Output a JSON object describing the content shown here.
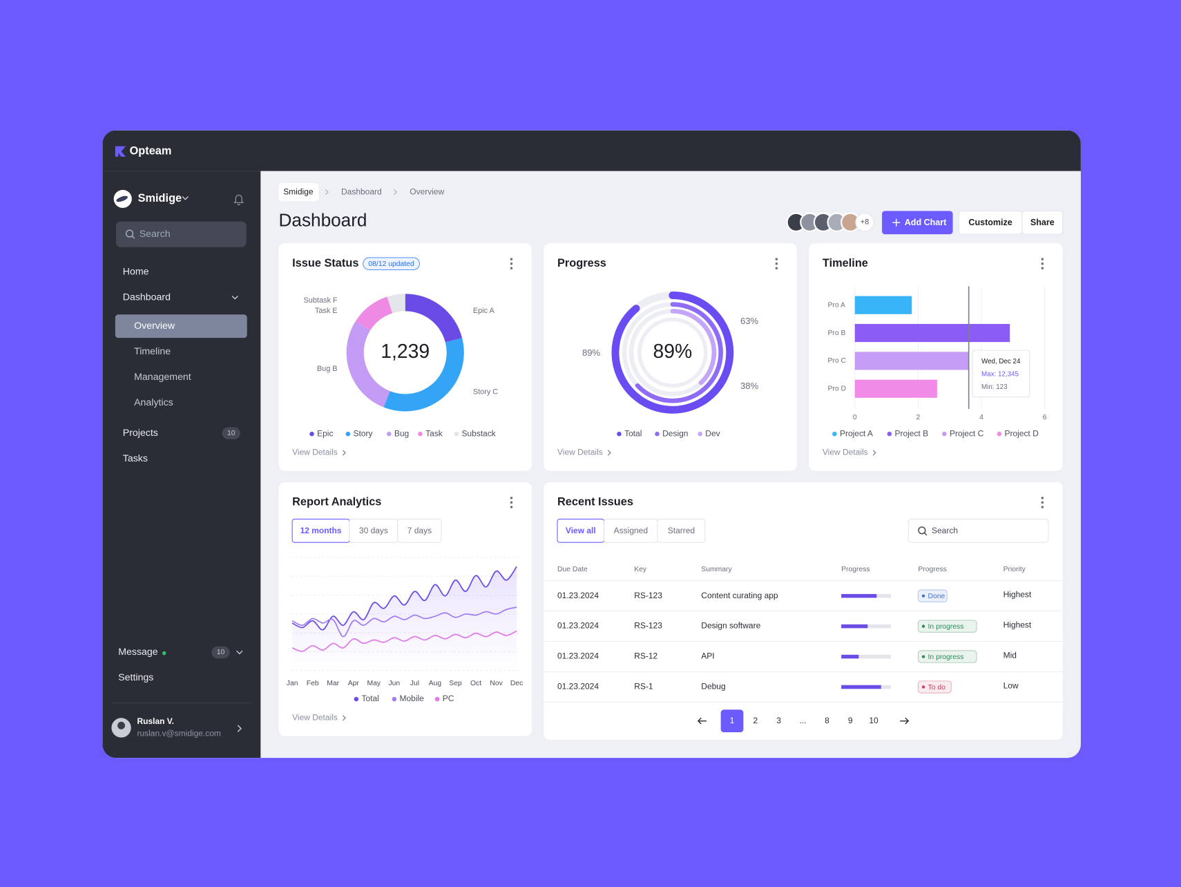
{
  "app": {
    "name": "Opteam"
  },
  "sidebar": {
    "workspace": "Smidige",
    "search": "Search",
    "nav": [
      {
        "label": "Home"
      },
      {
        "label": "Dashboard",
        "children": [
          "Overview",
          "Timeline",
          "Management",
          "Analytics"
        ]
      },
      {
        "label": "Projects",
        "badge": 10
      },
      {
        "label": "Tasks"
      }
    ],
    "message": {
      "label": "Message",
      "badge": 10
    },
    "settings": "Settings",
    "user": {
      "name": "Ruslan V.",
      "email": "ruslan.v@smidige.com"
    }
  },
  "breadcrumb": [
    "Smidige",
    "Dashboard",
    "Overview"
  ],
  "header": {
    "title": "Dashboard",
    "more_members": "+8",
    "buttons": [
      "Add Chart",
      "Customize",
      "Share"
    ]
  },
  "chart_data": [
    {
      "type": "donut",
      "title": "Issue Status",
      "badge": "08/12 updated",
      "total": "1,239",
      "categories": [
        "Epic A",
        "Story C",
        "Bug B",
        "Task E",
        "Subtask F"
      ],
      "legend": [
        "Epic",
        "Story",
        "Bug",
        "Task",
        "Substack"
      ],
      "values": [
        21,
        35,
        28,
        11,
        5
      ],
      "colors": [
        "#6a4be6",
        "#34a4f7",
        "#c39bf4",
        "#ef8ae4",
        "#e3e5ea"
      ],
      "link": "View Details"
    },
    {
      "type": "rings",
      "title": "Progress",
      "categories": [
        "Total",
        "Design",
        "Dev"
      ],
      "values": [
        89,
        63,
        38
      ],
      "value_labels": [
        "89%",
        "63%",
        "38%"
      ],
      "colors": [
        "#6a4cf2",
        "#8e6cf6",
        "#c3a6f7"
      ],
      "link": "View Details"
    },
    {
      "type": "hbar",
      "title": "Timeline",
      "categories": [
        "Pro A",
        "Pro B",
        "Pro C",
        "Pro D"
      ],
      "values": [
        1.8,
        4.9,
        3.6,
        2.6
      ],
      "colors": [
        "#38b4f8",
        "#8b5cf6",
        "#c59df6",
        "#f08be8"
      ],
      "legend": [
        "Project A",
        "Project B",
        "Project C",
        "Project D"
      ],
      "xlim": [
        0,
        6
      ],
      "xticks": [
        0,
        2,
        4,
        6
      ],
      "grid": true,
      "marker": 3.6,
      "tooltip": {
        "date": "Wed, Dec 24",
        "max": "Max: 12,345",
        "min": "Min: 123"
      },
      "link": "View Details"
    },
    {
      "type": "line",
      "title": "Report Analytics",
      "tabs": [
        "12 months",
        "30 days",
        "7 days"
      ],
      "categories": [
        "Jan",
        null,
        "Feb",
        null,
        "Mar",
        null,
        "Apr",
        null,
        "May",
        null,
        "Jun",
        null,
        "Jul",
        null,
        "Aug",
        null,
        "Sep",
        null,
        "Oct",
        null,
        "Nov",
        null,
        "Dec"
      ],
      "ylim": [
        0,
        100
      ],
      "series": [
        {
          "name": "Total",
          "color": "#6c4ce6",
          "values": [
            42,
            38,
            44,
            36,
            48,
            40,
            52,
            45,
            60,
            55,
            66,
            58,
            70,
            62,
            76,
            66,
            80,
            70,
            84,
            74,
            88,
            80,
            92
          ]
        },
        {
          "name": "Mobile",
          "color": "#a07cf2",
          "values": [
            44,
            40,
            46,
            42,
            45,
            30,
            44,
            40,
            46,
            43,
            48,
            45,
            49,
            46,
            48,
            51,
            47,
            50,
            49,
            52,
            50,
            54,
            56
          ]
        },
        {
          "name": "PC",
          "color": "#e07ae6",
          "values": [
            20,
            17,
            22,
            18,
            24,
            20,
            28,
            24,
            27,
            25,
            29,
            26,
            30,
            27,
            31,
            28,
            32,
            29,
            33,
            30,
            34,
            31,
            35
          ]
        }
      ],
      "link": "View Details"
    }
  ],
  "recent_issues": {
    "title": "Recent Issues",
    "tabs": [
      "View all",
      "Assigned",
      "Starred"
    ],
    "search": "Search",
    "columns": [
      "Due Date",
      "Key",
      "Summary",
      "Progress",
      "Progress",
      "Priority"
    ],
    "rows": [
      {
        "due": "01.23.2024",
        "key": "RS-123",
        "summary": "Content curating app",
        "progress": 71,
        "status": "Done",
        "status_color": "#3b6fe0",
        "priority": "Highest"
      },
      {
        "due": "01.23.2024",
        "key": "RS-123",
        "summary": "Design software",
        "progress": 53,
        "status": "In progress",
        "status_color": "#2e8a57",
        "priority": "Highest"
      },
      {
        "due": "01.23.2024",
        "key": "RS-12",
        "summary": "API",
        "progress": 35,
        "status": "In progress",
        "status_color": "#2e8a57",
        "priority": "Mid"
      },
      {
        "due": "01.23.2024",
        "key": "RS-1",
        "summary": "Debug",
        "progress": 80,
        "status": "To do",
        "status_color": "#d23a5e",
        "priority": "Low"
      }
    ],
    "pages": [
      "1",
      "2",
      "3",
      "...",
      "8",
      "9",
      "10"
    ]
  }
}
